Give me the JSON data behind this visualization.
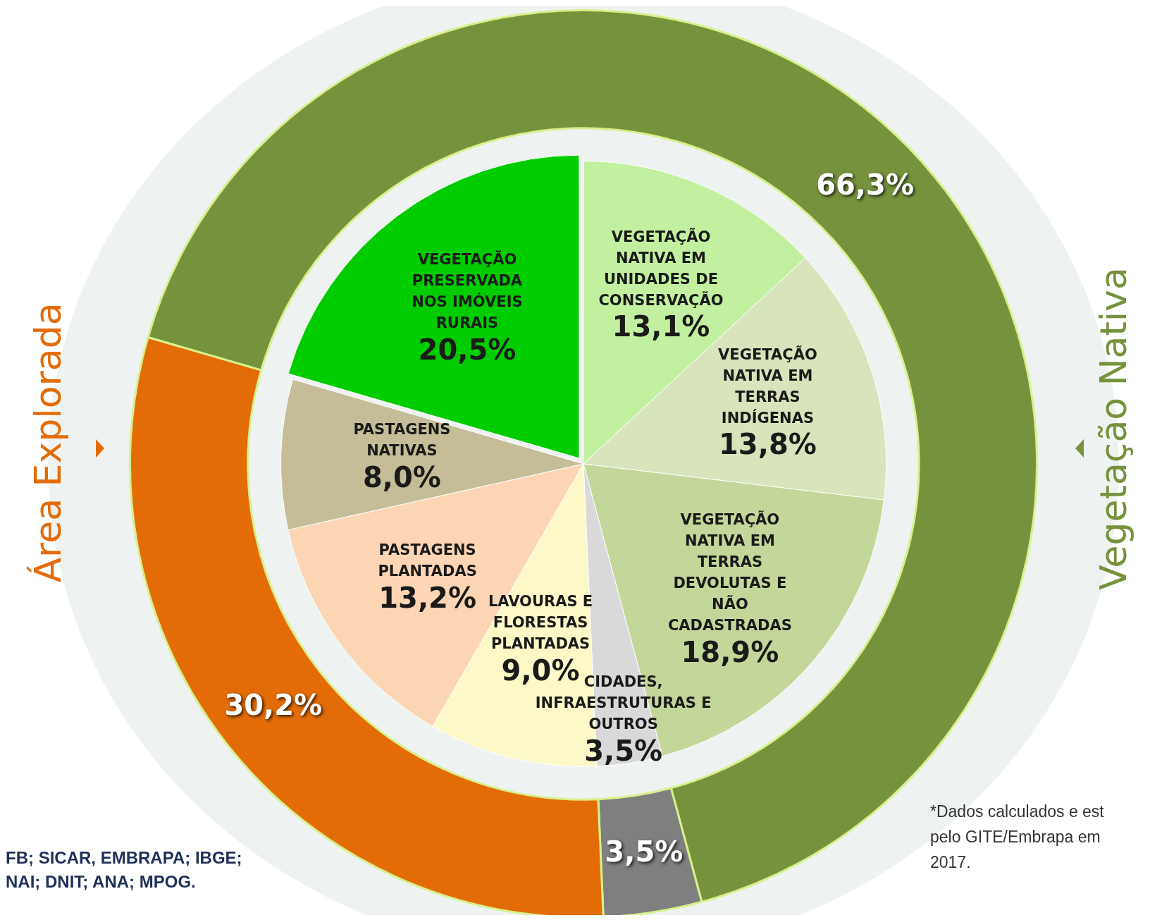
{
  "chart_data": [
    {
      "type": "donut",
      "categories": [
        "Vegetação Nativa",
        null,
        "Área Explorada"
      ],
      "values": [
        66.3,
        3.5,
        30.2
      ],
      "colors": [
        "#76923c",
        "#7f7f7f",
        "#e36c09"
      ],
      "value_labels": [
        "66,3%",
        "3,5%",
        "30,2%"
      ],
      "legend": false,
      "annotations": [
        "FB; SICAR, EMBRAPA; IBGE;\nNAI; DNIT; ANA; MPOG.",
        "*Dados calculados e est\npelo GITE/Embrapa em\n2017."
      ]
    },
    {
      "type": "pie",
      "categories": [
        "VEGETAÇÃO NATIVA EM UNIDADES DE CONSERVAÇÃO",
        "VEGETAÇÃO NATIVA EM TERRAS INDÍGENAS",
        "VEGETAÇÃO NATIVA EM TERRAS DEVOLUTAS E NÃO CADASTRADAS",
        "CIDADES, INFRAESTRUTURAS E OUTROS",
        "LAVOURAS E FLORESTAS PLANTADAS",
        "PASTAGENS PLANTADAS",
        "PASTAGENS NATIVAS",
        "VEGETAÇÃO PRESERVADA NOS IMÓVEIS RURAIS"
      ],
      "values": [
        13.1,
        13.8,
        18.9,
        3.5,
        9.0,
        13.2,
        8.0,
        20.5
      ],
      "colors": [
        "#c2f0a0",
        "#d8e4bc",
        "#c4d79b",
        "#d9d9d9",
        "#fdf8c8",
        "#fcd5b4",
        "#c4bd97",
        "#00cc00"
      ],
      "value_labels": [
        "13,1%",
        "13,8%",
        "18,9%",
        "3,5%",
        "9,0%",
        "13,2%",
        "8,0%",
        "20,5%"
      ],
      "legend": false
    }
  ]
}
